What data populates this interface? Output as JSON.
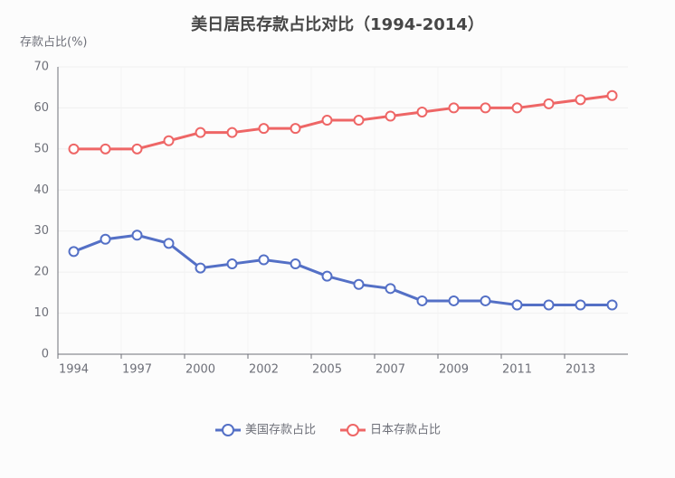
{
  "chart_data": {
    "type": "line",
    "title": "美日居民存款占比对比（1994-2014）",
    "y_label": "存款占比(%)",
    "categories": [
      "1994",
      null,
      "1997",
      null,
      "2000",
      null,
      "2002",
      null,
      "2005",
      null,
      "2007",
      null,
      "2009",
      null,
      "2011",
      null,
      "2013",
      null
    ],
    "series": [
      {
        "name": "美国存款占比",
        "color": "#5470c6",
        "values": [
          25,
          28,
          29,
          27,
          21,
          22,
          23,
          22,
          19,
          17,
          16,
          13,
          13,
          13,
          12,
          12,
          12,
          12
        ]
      },
      {
        "name": "日本存款占比",
        "color": "#ee6666",
        "values": [
          50,
          50,
          50,
          52,
          54,
          54,
          55,
          55,
          57,
          57,
          58,
          59,
          60,
          60,
          60,
          61,
          62,
          63
        ]
      }
    ],
    "ylim": [
      0,
      70
    ],
    "yticks": [
      0,
      10,
      20,
      30,
      40,
      50,
      60,
      70
    ],
    "grid": true,
    "legend": "bottom"
  }
}
